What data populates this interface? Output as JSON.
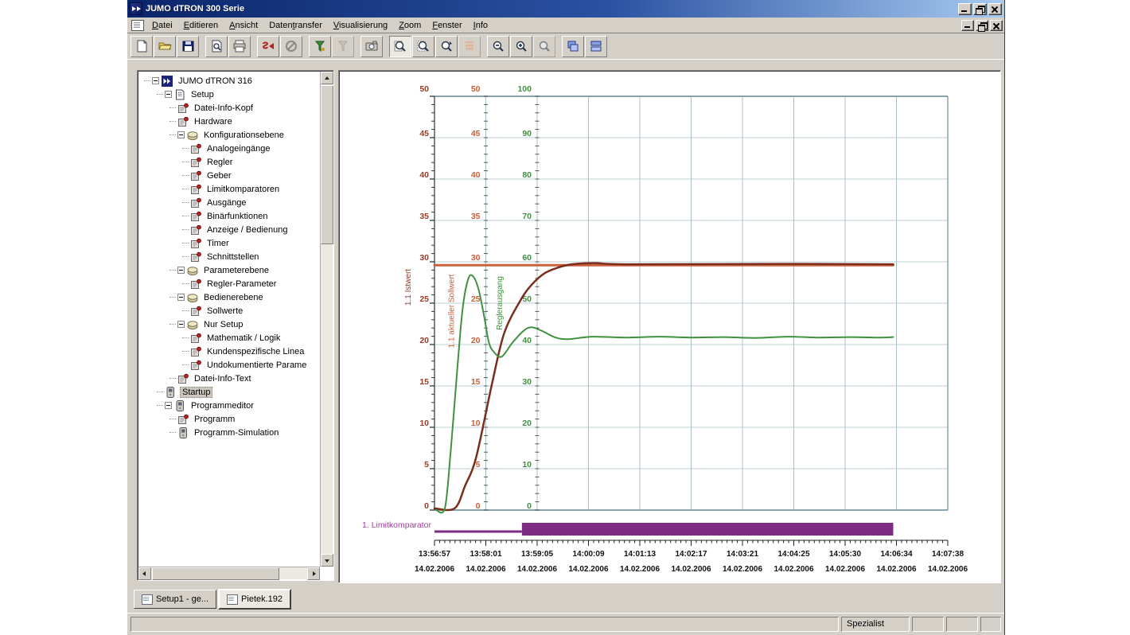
{
  "window": {
    "title": "JUMO dTRON 300 Serie",
    "controls": [
      "minimize",
      "restore",
      "close"
    ]
  },
  "menubar": {
    "items": [
      {
        "label": "Datei",
        "accel": 0
      },
      {
        "label": "Editieren",
        "accel": 0
      },
      {
        "label": "Ansicht",
        "accel": 0
      },
      {
        "label": "Datentransfer",
        "accel": 5
      },
      {
        "label": "Visualisierung",
        "accel": 0
      },
      {
        "label": "Zoom",
        "accel": 0
      },
      {
        "label": "Fenster",
        "accel": 0
      },
      {
        "label": "Info",
        "accel": 0
      }
    ]
  },
  "toolbar": {
    "groups": [
      [
        {
          "icon": "new-document"
        },
        {
          "icon": "open-folder"
        },
        {
          "icon": "save-floppy"
        }
      ],
      [
        {
          "icon": "print-preview"
        },
        {
          "icon": "print"
        }
      ],
      [
        {
          "icon": "transfer-to-device"
        },
        {
          "icon": "abort-transfer"
        }
      ],
      [
        {
          "icon": "receive-from-device"
        },
        {
          "icon": "receive-disabled",
          "disabled": true
        }
      ],
      [
        {
          "icon": "device-snapshot"
        }
      ],
      [
        {
          "icon": "zoom-mode",
          "pressed": true
        },
        {
          "icon": "zoom-window"
        },
        {
          "icon": "zoom-dynamic"
        },
        {
          "icon": "value-list",
          "disabled": true
        }
      ],
      [
        {
          "icon": "zoom-out"
        },
        {
          "icon": "zoom-in"
        },
        {
          "icon": "zoom-reset",
          "disabled": true
        }
      ],
      [
        {
          "icon": "cascade-windows"
        },
        {
          "icon": "tile-windows"
        }
      ]
    ]
  },
  "sidebar": {
    "tree": [
      {
        "label": "JUMO dTRON 316",
        "depth": 0,
        "icon": "jumo-logo",
        "expander": true
      },
      {
        "label": "Setup",
        "depth": 1,
        "icon": "setup-doc",
        "expander": true
      },
      {
        "label": "Datei-Info-Kopf",
        "depth": 2,
        "icon": "param"
      },
      {
        "label": "Hardware",
        "depth": 2,
        "icon": "param"
      },
      {
        "label": "Konfigurationsebene",
        "depth": 2,
        "icon": "group-oval",
        "expander": true
      },
      {
        "label": "Analogeingänge",
        "depth": 3,
        "icon": "param"
      },
      {
        "label": "Regler",
        "depth": 3,
        "icon": "param"
      },
      {
        "label": "Geber",
        "depth": 3,
        "icon": "param"
      },
      {
        "label": "Limitkomparatoren",
        "depth": 3,
        "icon": "param"
      },
      {
        "label": "Ausgänge",
        "depth": 3,
        "icon": "param"
      },
      {
        "label": "Binärfunktionen",
        "depth": 3,
        "icon": "param"
      },
      {
        "label": "Anzeige / Bedienung",
        "depth": 3,
        "icon": "param"
      },
      {
        "label": "Timer",
        "depth": 3,
        "icon": "param"
      },
      {
        "label": "Schnittstellen",
        "depth": 3,
        "icon": "param"
      },
      {
        "label": "Parameterebene",
        "depth": 2,
        "icon": "group-oval",
        "expander": true
      },
      {
        "label": "Regler-Parameter",
        "depth": 3,
        "icon": "param"
      },
      {
        "label": "Bedienerebene",
        "depth": 2,
        "icon": "group-oval",
        "expander": true
      },
      {
        "label": "Sollwerte",
        "depth": 3,
        "icon": "param"
      },
      {
        "label": "Nur Setup",
        "depth": 2,
        "icon": "group-oval",
        "expander": true
      },
      {
        "label": "Mathematik / Logik",
        "depth": 3,
        "icon": "param"
      },
      {
        "label": "Kundenspezifische Linea",
        "depth": 3,
        "icon": "param"
      },
      {
        "label": "Undokumentierte Parame",
        "depth": 3,
        "icon": "param"
      },
      {
        "label": "Datei-Info-Text",
        "depth": 2,
        "icon": "param"
      },
      {
        "label": "Startup",
        "depth": 1,
        "icon": "device",
        "selected": true
      },
      {
        "label": "Programmeditor",
        "depth": 1,
        "icon": "device",
        "expander": true
      },
      {
        "label": "Programm",
        "depth": 2,
        "icon": "param"
      },
      {
        "label": "Programm-Simulation",
        "depth": 2,
        "icon": "device"
      }
    ]
  },
  "tabs": [
    {
      "label": "Setup1 - ge...",
      "active": false
    },
    {
      "label": "Pietek.192",
      "active": true
    }
  ],
  "statusbar": {
    "mode": "Spezialist",
    "extra_panels": 3
  },
  "chart_data": {
    "type": "line",
    "time_span_s": 640,
    "tick_interval_s": 64,
    "y_axes": [
      {
        "id": "istwert",
        "label": "1.1 Istwert",
        "color": "#9a3a26",
        "min": 0,
        "max": 50,
        "tick_step": 5,
        "tick_labels": [
          "50",
          "45",
          "40",
          "35",
          "30",
          "25",
          "20",
          "15",
          "10",
          "5",
          "0"
        ]
      },
      {
        "id": "sollwert",
        "label": "1.1 aktueller Sollwert",
        "color": "#c8603c",
        "min": 0,
        "max": 50,
        "tick_step": 5,
        "tick_labels": [
          "50",
          "45",
          "40",
          "35",
          "30",
          "25",
          "20",
          "15",
          "10",
          "5",
          "0"
        ]
      },
      {
        "id": "reglerausgang",
        "label": "Reglerausgang",
        "color": "#3f9140",
        "min": 0,
        "max": 100,
        "tick_step": 10,
        "tick_labels": [
          "100",
          "90",
          "80",
          "70",
          "60",
          "50",
          "40",
          "30",
          "20",
          "10",
          "0"
        ]
      }
    ],
    "x_axis": {
      "ticks": [
        {
          "time": "13:56:57",
          "date": "14.02.2006"
        },
        {
          "time": "13:58:01",
          "date": "14.02.2006"
        },
        {
          "time": "13:59:05",
          "date": "14.02.2006"
        },
        {
          "time": "14:00:09",
          "date": "14.02.2006"
        },
        {
          "time": "14:01:13",
          "date": "14.02.2006"
        },
        {
          "time": "14:02:17",
          "date": "14.02.2006"
        },
        {
          "time": "14:03:21",
          "date": "14.02.2006"
        },
        {
          "time": "14:04:25",
          "date": "14.02.2006"
        },
        {
          "time": "14:05:30",
          "date": "14.02.2006"
        },
        {
          "time": "14:06:34",
          "date": "14.02.2006"
        },
        {
          "time": "14:07:38",
          "date": "14.02.2006"
        }
      ]
    },
    "grid": {
      "h_color": "#bdd2d6",
      "v_color": "#a9c0c6",
      "frame_color": "#8ba2aa"
    },
    "series": [
      {
        "name": "1.1 aktueller Sollwert",
        "axis": "sollwert",
        "color": "#c8603c",
        "width": 3,
        "points": [
          [
            0,
            29.6
          ],
          [
            572,
            29.6
          ]
        ]
      },
      {
        "name": "1.1 Istwert",
        "axis": "istwert",
        "color": "#7a2e1e",
        "width": 2.5,
        "points": [
          [
            0,
            0.2
          ],
          [
            25,
            0.2
          ],
          [
            38,
            2.9
          ],
          [
            52,
            6.4
          ],
          [
            72,
            15.4
          ],
          [
            87,
            21.4
          ],
          [
            107,
            25.3
          ],
          [
            121,
            27.2
          ],
          [
            137,
            28.6
          ],
          [
            154,
            29.3
          ],
          [
            171,
            29.7
          ],
          [
            200,
            29.85
          ],
          [
            240,
            29.7
          ],
          [
            430,
            29.75
          ],
          [
            572,
            29.7
          ]
        ]
      },
      {
        "name": "Reglerausgang",
        "axis": "reglerausgang",
        "color": "#3f9140",
        "width": 2,
        "points": [
          [
            2,
            0
          ],
          [
            13,
            0.5
          ],
          [
            20,
            13.8
          ],
          [
            28,
            33.0
          ],
          [
            35,
            48.5
          ],
          [
            42,
            55.8
          ],
          [
            48,
            56.5
          ],
          [
            55,
            53.3
          ],
          [
            62,
            46.7
          ],
          [
            68,
            40.4
          ],
          [
            75,
            38.0
          ],
          [
            84,
            37.1
          ],
          [
            97,
            40.4
          ],
          [
            111,
            43.3
          ],
          [
            121,
            44.2
          ],
          [
            134,
            43.3
          ],
          [
            151,
            41.7
          ],
          [
            167,
            41.3
          ],
          [
            196,
            41.9
          ],
          [
            240,
            41.7
          ],
          [
            280,
            41.9
          ],
          [
            320,
            41.7
          ],
          [
            360,
            41.8
          ],
          [
            400,
            41.6
          ],
          [
            440,
            41.9
          ],
          [
            480,
            41.7
          ],
          [
            520,
            41.8
          ],
          [
            555,
            41.7
          ],
          [
            572,
            41.8
          ]
        ]
      }
    ],
    "digital_track": {
      "label": "1. Limitkomparator",
      "bar_color": "#7e2b84",
      "label_color": "#b036a8",
      "segments": [
        {
          "from": 0,
          "to": 109,
          "state": "low"
        },
        {
          "from": 109,
          "to": 572,
          "state": "high"
        }
      ]
    }
  }
}
